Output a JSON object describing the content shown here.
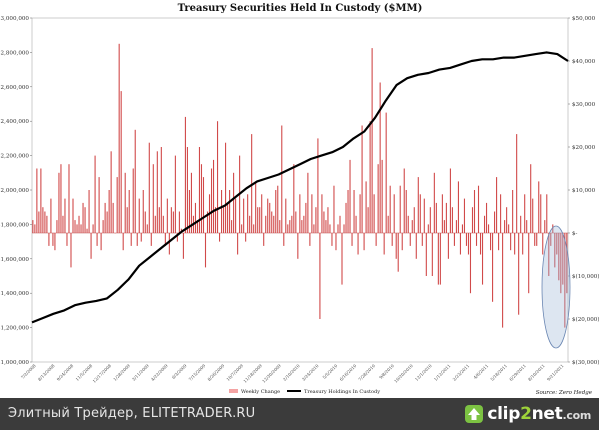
{
  "footer": {
    "caption": "Элитный Трейдер, ELITETRADER.RU",
    "brand_prefix": "clip",
    "brand_number": "2",
    "brand_suffix": "net",
    "brand_tld": ".com"
  },
  "chart_data": {
    "type": "bar+line",
    "title": "Treasury Securities Held In Custody ($MM)",
    "source": "Source: Zero Hedge",
    "left_axis": {
      "ticks": [
        "$1,000,000",
        "$1,200,000",
        "$1,400,000",
        "$1,600,000",
        "$1,800,000",
        "$2,000,000",
        "$2,200,000",
        "$2,400,000",
        "$2,600,000",
        "$2,800,000",
        "$3,000,000"
      ],
      "range": [
        1000000,
        3000000
      ]
    },
    "right_axis": {
      "ticks": [
        "$50,000",
        "$40,000",
        "$30,000",
        "$20,000",
        "$10,000",
        "$-",
        "$(10,000)",
        "$(20,000)",
        "$(30,000)"
      ],
      "range": [
        -30000,
        50000
      ]
    },
    "x_labels": [
      "7/2/2008",
      "8/13/2008",
      "9/24/2008",
      "11/5/2008",
      "12/17/2008",
      "1/28/2009",
      "3/11/2009",
      "4/22/2009",
      "6/3/2009",
      "7/15/2009",
      "8/26/2009",
      "10/7/2009",
      "11/18/2009",
      "12/30/2009",
      "2/10/2010",
      "3/24/2010",
      "5/5/2010",
      "6/16/2010",
      "7/28/2010",
      "9/8/2010",
      "10/20/2010",
      "12/1/2010",
      "1/12/2011",
      "2/23/2011",
      "4/6/2011",
      "5/18/2011",
      "6/29/2011",
      "8/10/2011",
      "9/21/2011"
    ],
    "legend": [
      {
        "name": "Weekly Change",
        "color": "#f4a3a3"
      },
      {
        "name": "Treasury Holdings In Custody",
        "color": "#000000"
      }
    ],
    "series": [
      {
        "name": "Weekly Change",
        "axis": "right",
        "color": "#d14a4a",
        "values": [
          3000,
          2000,
          15000,
          5000,
          15000,
          6000,
          5000,
          4000,
          -3000,
          8000,
          -3000,
          -4000,
          3000,
          14000,
          16000,
          4000,
          8000,
          -3000,
          16000,
          -8000,
          8000,
          3000,
          2000,
          4000,
          2000,
          7000,
          6000,
          1000,
          10000,
          -6000,
          2000,
          18000,
          -3000,
          13000,
          -4000,
          3000,
          7000,
          5000,
          10000,
          19000,
          7000,
          0,
          13000,
          44000,
          33000,
          -4000,
          14000,
          6000,
          10000,
          -3000,
          15000,
          24000,
          -3000,
          8000,
          -2000,
          10000,
          5000,
          2000,
          21000,
          -3000,
          16000,
          4000,
          19000,
          6000,
          20000,
          4000,
          -3000,
          8000,
          -5000,
          6000,
          5000,
          18000,
          -2000,
          5000,
          1000,
          -6000,
          27000,
          20000,
          10000,
          14000,
          4000,
          7000,
          3000,
          20000,
          16000,
          13000,
          -8000,
          5000,
          9000,
          15000,
          17000,
          6000,
          26000,
          -2000,
          10000,
          6000,
          21000,
          7000,
          10000,
          3000,
          14000,
          8000,
          -5000,
          18000,
          2000,
          8000,
          -2000,
          9000,
          4000,
          23000,
          2000,
          12000,
          6000,
          6000,
          9000,
          -3000,
          4000,
          8000,
          7000,
          5000,
          4000,
          10000,
          11000,
          3000,
          25000,
          -3000,
          8000,
          2000,
          3000,
          4000,
          16000,
          5000,
          -6000,
          9000,
          3000,
          4000,
          7000,
          14000,
          -3000,
          9000,
          2000,
          6000,
          22000,
          -20000,
          9000,
          5000,
          3000,
          6000,
          2000,
          -3000,
          11000,
          -4000,
          2000,
          4000,
          -12000,
          2000,
          7000,
          10000,
          17000,
          -3000,
          10000,
          4000,
          -5000,
          9000,
          25000,
          -4000,
          12000,
          6000,
          26000,
          43000,
          9000,
          -3000,
          16000,
          35000,
          17000,
          -5000,
          28000,
          4000,
          11000,
          -3000,
          9000,
          -6000,
          -9000,
          11000,
          -4000,
          15000,
          10000,
          4000,
          -3000,
          3000,
          6000,
          -6000,
          13000,
          9000,
          -3000,
          8000,
          -10000,
          2000,
          6000,
          -10000,
          14000,
          7000,
          -12000,
          -12000,
          9000,
          3000,
          7000,
          -6000,
          15000,
          6000,
          -3000,
          3000,
          12000,
          -5000,
          2000,
          8000,
          -3000,
          -5000,
          -14000,
          6000,
          10000,
          -3000,
          11000,
          -5000,
          -12000,
          4000,
          7000,
          2000,
          -4000,
          -16000,
          5000,
          13000,
          -4000,
          9000,
          -22000,
          3000,
          6000,
          2000,
          -4000,
          10000,
          -5000,
          23000,
          -19000,
          4000,
          -5000,
          9000,
          3000,
          -14000,
          16000,
          8000,
          -3000,
          -3000,
          12000,
          9000,
          -5000,
          3000,
          9000,
          -10000,
          -3000,
          2000,
          -8000,
          -5000,
          -11000,
          -14000,
          -12000,
          -22000,
          -14000
        ]
      },
      {
        "name": "Treasury Holdings In Custody",
        "axis": "left",
        "color": "#000000",
        "x_fraction": [
          0,
          0.02,
          0.04,
          0.06,
          0.08,
          0.1,
          0.12,
          0.14,
          0.16,
          0.18,
          0.2,
          0.22,
          0.24,
          0.26,
          0.28,
          0.3,
          0.32,
          0.34,
          0.36,
          0.38,
          0.4,
          0.42,
          0.44,
          0.46,
          0.48,
          0.5,
          0.52,
          0.54,
          0.56,
          0.58,
          0.6,
          0.62,
          0.64,
          0.66,
          0.68,
          0.7,
          0.72,
          0.74,
          0.76,
          0.78,
          0.8,
          0.82,
          0.84,
          0.86,
          0.88,
          0.9,
          0.92,
          0.94,
          0.96,
          0.98,
          1.0
        ],
        "values": [
          1230000,
          1255000,
          1280000,
          1300000,
          1330000,
          1345000,
          1355000,
          1370000,
          1420000,
          1480000,
          1560000,
          1610000,
          1660000,
          1710000,
          1760000,
          1800000,
          1840000,
          1880000,
          1910000,
          1960000,
          2010000,
          2050000,
          2070000,
          2090000,
          2120000,
          2150000,
          2180000,
          2200000,
          2220000,
          2250000,
          2300000,
          2340000,
          2420000,
          2520000,
          2610000,
          2650000,
          2670000,
          2680000,
          2700000,
          2710000,
          2730000,
          2750000,
          2760000,
          2760000,
          2770000,
          2770000,
          2780000,
          2790000,
          2800000,
          2790000,
          2750000
        ]
      }
    ],
    "highlight": {
      "shape": "ellipse",
      "color": "#9fb7d8"
    }
  }
}
